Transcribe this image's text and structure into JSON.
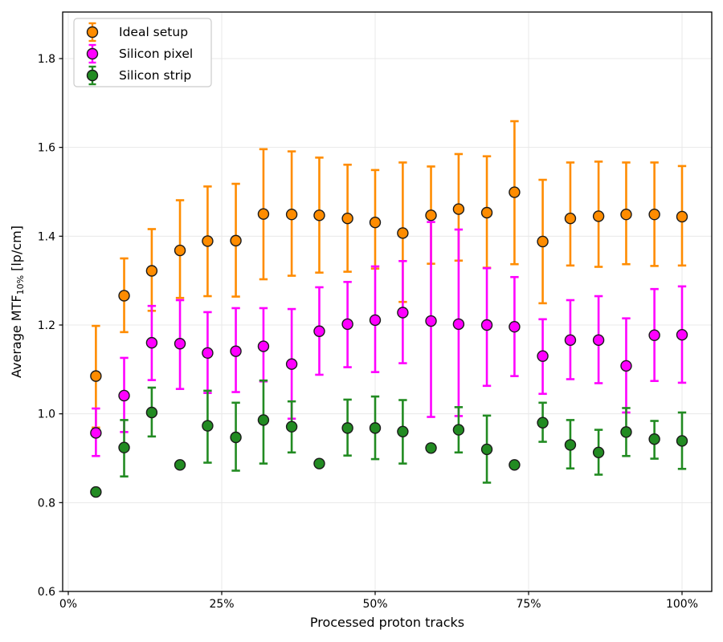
{
  "figure": {
    "background": "#ffffff",
    "grid_color": "#e8e8e8",
    "spine_color": "#000000",
    "legend_border_color": "#cccccc",
    "marker_edge_color": "#1a1a1a"
  },
  "chart_data": {
    "type": "scatter",
    "title": "",
    "xlabel": "Processed proton tracks",
    "ylabel_prefix": "Average MTF",
    "ylabel_sub": "10%",
    "ylabel_suffix": " [lp/cm]",
    "xlim_pct": [
      -1,
      105
    ],
    "ylim": [
      0.6,
      1.9
    ],
    "grid": true,
    "legend_position": "upper left",
    "x_tick_labels": [
      "0%",
      "25%",
      "50%",
      "75%",
      "100%"
    ],
    "x_tick_values": [
      0,
      25,
      50,
      75,
      100
    ],
    "y_tick_labels": [
      "0.6",
      "0.8",
      "1.0",
      "1.2",
      "1.4",
      "1.6",
      "1.8"
    ],
    "y_tick_values": [
      0.6,
      0.8,
      1.0,
      1.2,
      1.4,
      1.6,
      1.8
    ],
    "x_pct": [
      4.5,
      9.1,
      13.6,
      18.2,
      22.7,
      27.3,
      31.8,
      36.4,
      40.9,
      45.5,
      50.0,
      54.5,
      59.1,
      63.6,
      68.2,
      72.7,
      77.3,
      81.8,
      86.4,
      90.9,
      95.5,
      100.0
    ],
    "series": [
      {
        "name": "Ideal setup",
        "color": "#ff8c00",
        "values": [
          1.085,
          1.266,
          1.322,
          1.368,
          1.389,
          1.39,
          1.45,
          1.449,
          1.447,
          1.44,
          1.431,
          1.407,
          1.447,
          1.461,
          1.453,
          1.499,
          1.388,
          1.44,
          1.445,
          1.449,
          1.449,
          1.444
        ],
        "err_lo": [
          0.969,
          1.184,
          1.232,
          1.261,
          1.265,
          1.264,
          1.303,
          1.311,
          1.318,
          1.32,
          1.327,
          1.252,
          1.338,
          1.345,
          1.329,
          1.337,
          1.249,
          1.334,
          1.331,
          1.337,
          1.333,
          1.334
        ],
        "err_hi": [
          1.198,
          1.35,
          1.416,
          1.481,
          1.512,
          1.518,
          1.596,
          1.591,
          1.577,
          1.561,
          1.549,
          1.566,
          1.557,
          1.585,
          1.58,
          1.659,
          1.527,
          1.566,
          1.568,
          1.566,
          1.566,
          1.558
        ]
      },
      {
        "name": "Silicon pixel",
        "color": "#ff00ff",
        "values": [
          0.957,
          1.041,
          1.16,
          1.158,
          1.137,
          1.141,
          1.152,
          1.112,
          1.186,
          1.202,
          1.211,
          1.228,
          1.209,
          1.202,
          1.2,
          1.196,
          1.13,
          1.166,
          1.166,
          1.108,
          1.177,
          1.178
        ],
        "err_lo": [
          0.905,
          0.959,
          1.076,
          1.056,
          1.047,
          1.049,
          1.073,
          0.989,
          1.088,
          1.105,
          1.094,
          1.114,
          0.993,
          0.995,
          1.063,
          1.085,
          1.045,
          1.078,
          1.069,
          1.003,
          1.074,
          1.07
        ],
        "err_hi": [
          1.012,
          1.126,
          1.243,
          1.256,
          1.229,
          1.238,
          1.238,
          1.236,
          1.285,
          1.297,
          1.332,
          1.344,
          1.432,
          1.415,
          1.328,
          1.308,
          1.213,
          1.256,
          1.265,
          1.215,
          1.281,
          1.287
        ]
      },
      {
        "name": "Silicon strip",
        "color": "#228b22",
        "values": [
          0.824,
          0.924,
          1.003,
          0.885,
          0.973,
          0.947,
          0.986,
          0.971,
          0.888,
          0.968,
          0.968,
          0.96,
          0.923,
          0.964,
          0.92,
          0.885,
          0.98,
          0.93,
          0.913,
          0.959,
          0.943,
          0.939
        ],
        "err_lo": [
          0.824,
          0.859,
          0.949,
          0.885,
          0.89,
          0.872,
          0.888,
          0.913,
          0.888,
          0.906,
          0.898,
          0.888,
          0.923,
          0.913,
          0.845,
          0.885,
          0.937,
          0.877,
          0.863,
          0.905,
          0.899,
          0.876
        ],
        "err_hi": [
          0.824,
          0.986,
          1.059,
          0.885,
          1.052,
          1.025,
          1.075,
          1.028,
          0.888,
          1.032,
          1.039,
          1.031,
          0.923,
          1.015,
          0.996,
          0.885,
          1.025,
          0.986,
          0.964,
          1.013,
          0.984,
          1.003
        ]
      }
    ]
  }
}
